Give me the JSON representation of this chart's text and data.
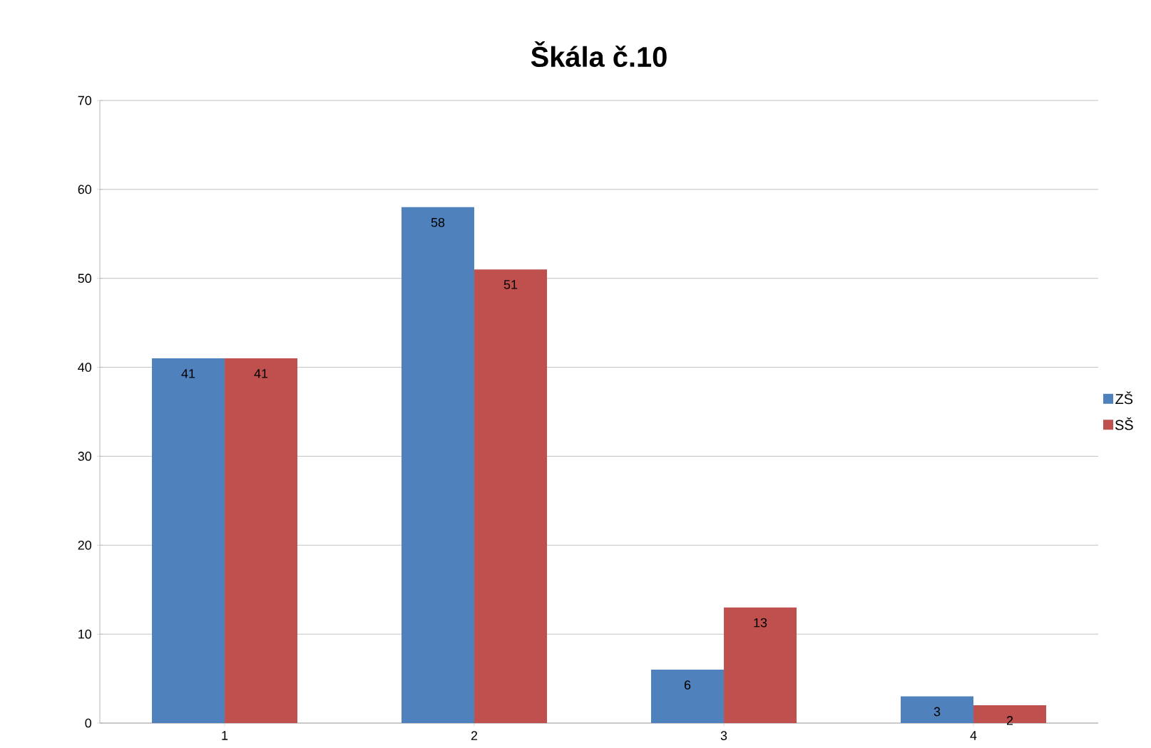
{
  "chart_data": {
    "type": "bar",
    "title": "Škála č.10",
    "categories": [
      "1",
      "2",
      "3",
      "4"
    ],
    "series": [
      {
        "name": "ZŠ",
        "color": "#4f81bd",
        "values": [
          41,
          58,
          6,
          3
        ]
      },
      {
        "name": "SŠ",
        "color": "#c0504d",
        "values": [
          41,
          51,
          13,
          2
        ]
      }
    ],
    "ylim": [
      0,
      70
    ],
    "yticks": [
      0,
      10,
      20,
      30,
      40,
      50,
      60,
      70
    ],
    "grid": "y",
    "legend": "right",
    "data_labels": true
  }
}
